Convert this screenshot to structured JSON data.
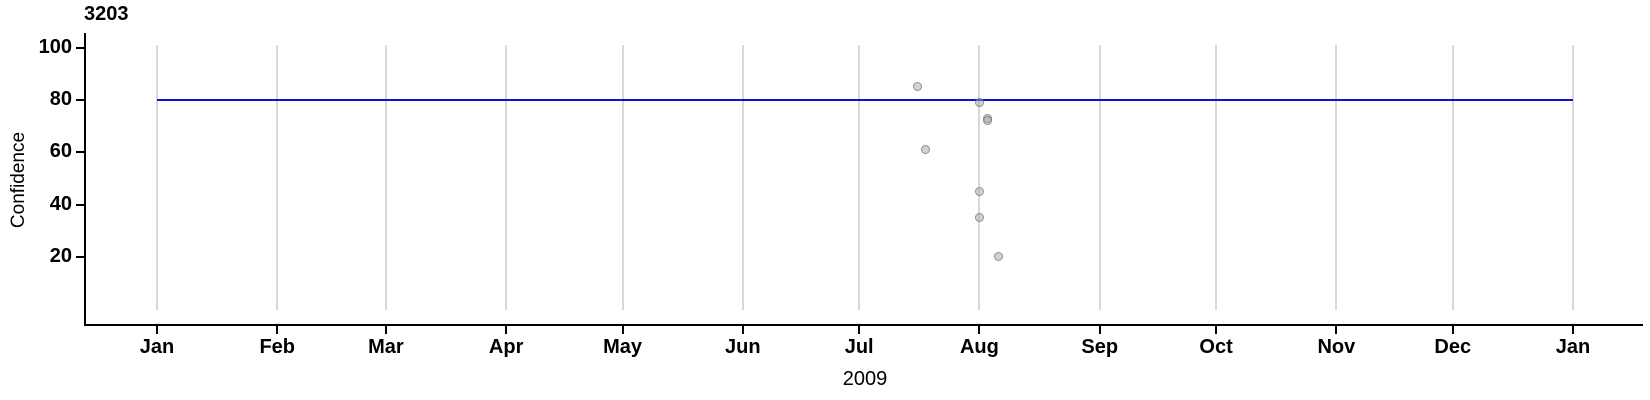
{
  "chart_data": {
    "type": "scatter",
    "title": "3203",
    "xlabel": "2009",
    "ylabel": "Confidence",
    "x_ticks": [
      {
        "label": "Jan",
        "day_of_year": 0
      },
      {
        "label": "Feb",
        "day_of_year": 31
      },
      {
        "label": "Mar",
        "day_of_year": 59
      },
      {
        "label": "Apr",
        "day_of_year": 90
      },
      {
        "label": "May",
        "day_of_year": 120
      },
      {
        "label": "Jun",
        "day_of_year": 151
      },
      {
        "label": "Jul",
        "day_of_year": 181
      },
      {
        "label": "Aug",
        "day_of_year": 212
      },
      {
        "label": "Sep",
        "day_of_year": 243
      },
      {
        "label": "Oct",
        "day_of_year": 273
      },
      {
        "label": "Nov",
        "day_of_year": 304
      },
      {
        "label": "Dec",
        "day_of_year": 334
      },
      {
        "label": "Jan",
        "day_of_year": 365
      }
    ],
    "y_ticks": [
      20,
      40,
      60,
      80,
      100
    ],
    "ylim": [
      0,
      105
    ],
    "x_range_days": [
      0,
      365
    ],
    "grid": "vertical gridlines at each month start",
    "legend": "none",
    "points": [
      {
        "date": "2009-07-15",
        "day_of_year": 196,
        "confidence": 85
      },
      {
        "date": "2009-08-01",
        "day_of_year": 212,
        "confidence": 79
      },
      {
        "date": "2009-08-03",
        "day_of_year": 214,
        "confidence": 73
      },
      {
        "date": "2009-08-03",
        "day_of_year": 214,
        "confidence": 72
      },
      {
        "date": "2009-07-17",
        "day_of_year": 198,
        "confidence": 61
      },
      {
        "date": "2009-08-01",
        "day_of_year": 212,
        "confidence": 45
      },
      {
        "date": "2009-08-01",
        "day_of_year": 212,
        "confidence": 35
      },
      {
        "date": "2009-08-06",
        "day_of_year": 217,
        "confidence": 20
      }
    ],
    "reference_line": {
      "confidence": 80,
      "start_day": 0,
      "end_day": 365
    },
    "style": {
      "reference_line_color": "#1111cc",
      "gridline_color": "#d9d9d9",
      "axis_color": "#000000",
      "point_fill": "rgba(165,165,165,0.5)",
      "point_border": "rgba(100,100,100,0.6)",
      "background": "#ffffff"
    }
  }
}
